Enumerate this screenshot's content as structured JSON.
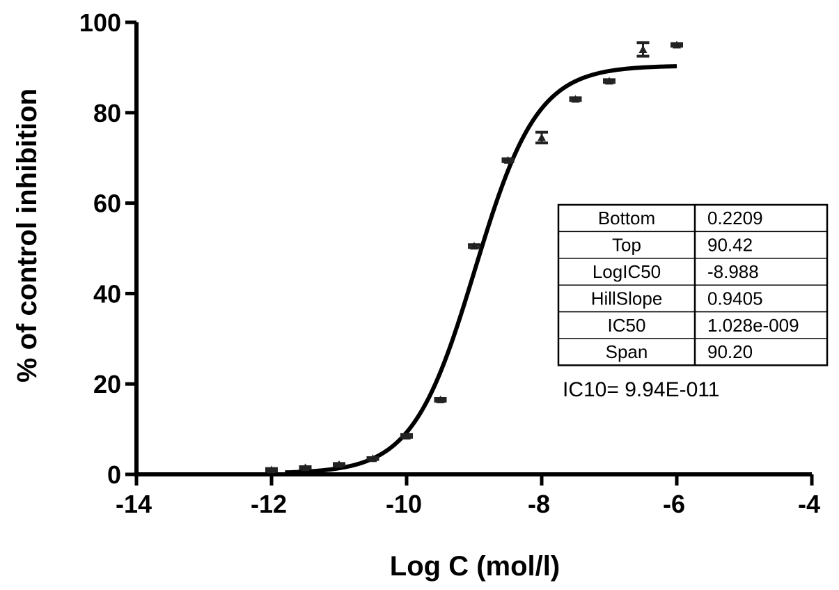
{
  "chart_data": {
    "type": "scatter",
    "title": "",
    "xlabel": "Log C (mol/l)",
    "ylabel": "% of control inhibition",
    "xlim": [
      -14,
      -4
    ],
    "ylim": [
      0,
      100
    ],
    "x_ticks": [
      -14,
      -12,
      -10,
      -8,
      -6,
      -4
    ],
    "x_tick_labels": [
      "-14",
      "-12",
      "-10",
      "-8",
      "-6",
      "-4"
    ],
    "y_ticks": [
      0,
      20,
      40,
      60,
      80,
      100
    ],
    "y_tick_labels": [
      "0",
      "20",
      "40",
      "60",
      "80",
      "100"
    ],
    "grid": false,
    "series": [
      {
        "kind": "points",
        "x": [
          -12,
          -11.5,
          -11,
          -10.5,
          -10,
          -9.5,
          -9,
          -8.5,
          -8,
          -7.5,
          -7,
          -6.5,
          -6
        ],
        "y": [
          1.0,
          1.5,
          2.2,
          3.5,
          8.5,
          16.5,
          50.5,
          69.5,
          74.5,
          83.0,
          87.0,
          94.0,
          95.0
        ],
        "error": [
          0.3,
          0.2,
          0.2,
          0.2,
          0.3,
          0.3,
          0.3,
          0.3,
          1.2,
          0.3,
          0.3,
          1.5,
          0.3
        ]
      },
      {
        "kind": "fit",
        "model": "four-parameter-logistic",
        "bottom": 0.2209,
        "top": 90.42,
        "logic50": -8.988,
        "hillslope": 0.9405,
        "x_range": [
          -11.8,
          -6
        ]
      }
    ],
    "table": {
      "rows": [
        {
          "label": "Bottom",
          "value": "0.2209"
        },
        {
          "label": "Top",
          "value": "90.42"
        },
        {
          "label": "LogIC50",
          "value": "-8.988"
        },
        {
          "label": "HillSlope",
          "value": "0.9405"
        },
        {
          "label": "IC50",
          "value": "1.028e-009"
        },
        {
          "label": "Span",
          "value": "90.20"
        }
      ],
      "placement": "right-middle"
    },
    "annotation": "IC10= 9.94E-011",
    "colors": {
      "line": "#000000",
      "points": "#222222",
      "background": "#ffffff"
    }
  }
}
